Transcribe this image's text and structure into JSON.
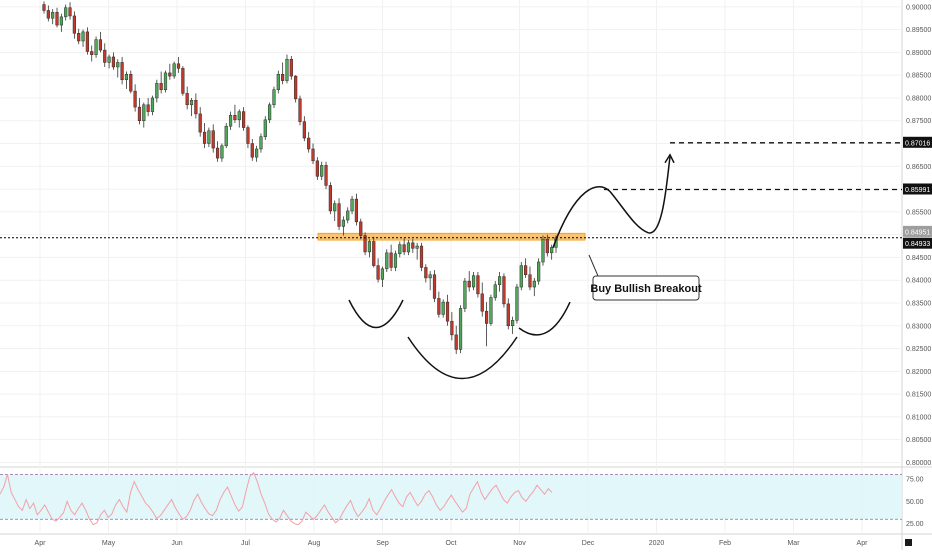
{
  "chart_data": {
    "type": "candlestick",
    "instrument_hint": "",
    "y_axis": {
      "ticks": [
        "0.90000",
        "0.89500",
        "0.89000",
        "0.88500",
        "0.88000",
        "0.87500",
        "0.87000",
        "0.86500",
        "0.86000",
        "0.85500",
        "0.85000",
        "0.84500",
        "0.84000",
        "0.83500",
        "0.83000",
        "0.82500",
        "0.82000",
        "0.81500",
        "0.81000",
        "0.80500",
        "0.80000"
      ],
      "ylim": [
        0.799,
        0.9015
      ]
    },
    "x_axis": {
      "ticks": [
        "Apr",
        "May",
        "Jun",
        "Jul",
        "Aug",
        "Sep",
        "Oct",
        "Nov",
        "Dec",
        "2020",
        "Feb",
        "Mar",
        "Apr"
      ]
    },
    "price_labels": [
      {
        "text": "0.87016",
        "value": 0.87016,
        "style": "dark"
      },
      {
        "text": "0.85991",
        "value": 0.85991,
        "style": "dark"
      },
      {
        "text": "0.84951",
        "value": 0.84951,
        "style": "gray"
      },
      {
        "text": "0.84933",
        "value": 0.84933,
        "style": "dark"
      }
    ],
    "levels": {
      "resistance_zone": [
        0.8488,
        0.8503
      ],
      "current_price_line": 0.84933,
      "target_1": 0.85991,
      "target_2": 0.87016
    },
    "annotation": "Buy Bullish Breakout",
    "candles": [
      [
        0.9005,
        0.9012,
        0.8985,
        0.8992
      ],
      [
        0.8992,
        0.9003,
        0.8968,
        0.8975
      ],
      [
        0.8975,
        0.8995,
        0.8962,
        0.8988
      ],
      [
        0.8988,
        0.8998,
        0.8955,
        0.896
      ],
      [
        0.896,
        0.8985,
        0.8945,
        0.8978
      ],
      [
        0.8978,
        0.9005,
        0.897,
        0.8998
      ],
      [
        0.8998,
        0.901,
        0.8972,
        0.898
      ],
      [
        0.898,
        0.899,
        0.893,
        0.8942
      ],
      [
        0.8942,
        0.8952,
        0.8918,
        0.8925
      ],
      [
        0.8925,
        0.895,
        0.8912,
        0.8945
      ],
      [
        0.8945,
        0.8955,
        0.8895,
        0.8902
      ],
      [
        0.8902,
        0.8915,
        0.888,
        0.8895
      ],
      [
        0.8895,
        0.8935,
        0.8888,
        0.8928
      ],
      [
        0.8928,
        0.8945,
        0.89,
        0.8905
      ],
      [
        0.8905,
        0.892,
        0.8868,
        0.8878
      ],
      [
        0.8878,
        0.8895,
        0.8865,
        0.889
      ],
      [
        0.889,
        0.89,
        0.8862,
        0.8868
      ],
      [
        0.8868,
        0.8885,
        0.8845,
        0.8878
      ],
      [
        0.8878,
        0.889,
        0.883,
        0.884
      ],
      [
        0.884,
        0.8858,
        0.882,
        0.8852
      ],
      [
        0.8852,
        0.886,
        0.881,
        0.8815
      ],
      [
        0.8815,
        0.883,
        0.877,
        0.878
      ],
      [
        0.878,
        0.88,
        0.8742,
        0.875
      ],
      [
        0.875,
        0.879,
        0.8735,
        0.8785
      ],
      [
        0.8785,
        0.88,
        0.876,
        0.877
      ],
      [
        0.877,
        0.8805,
        0.8762,
        0.88
      ],
      [
        0.88,
        0.884,
        0.879,
        0.8832
      ],
      [
        0.8832,
        0.8858,
        0.881,
        0.8818
      ],
      [
        0.8818,
        0.886,
        0.8812,
        0.8855
      ],
      [
        0.8855,
        0.8875,
        0.884,
        0.8848
      ],
      [
        0.8848,
        0.888,
        0.8842,
        0.8875
      ],
      [
        0.8875,
        0.889,
        0.8855,
        0.8865
      ],
      [
        0.8865,
        0.887,
        0.8805,
        0.881
      ],
      [
        0.881,
        0.8825,
        0.8775,
        0.8785
      ],
      [
        0.8785,
        0.88,
        0.876,
        0.8795
      ],
      [
        0.8795,
        0.881,
        0.8755,
        0.8765
      ],
      [
        0.8765,
        0.878,
        0.8715,
        0.8725
      ],
      [
        0.8725,
        0.8745,
        0.869,
        0.87
      ],
      [
        0.87,
        0.8735,
        0.8692,
        0.8728
      ],
      [
        0.8728,
        0.8742,
        0.868,
        0.869
      ],
      [
        0.869,
        0.8705,
        0.866,
        0.8668
      ],
      [
        0.8668,
        0.87,
        0.866,
        0.8695
      ],
      [
        0.8695,
        0.8745,
        0.869,
        0.8738
      ],
      [
        0.8738,
        0.877,
        0.873,
        0.8762
      ],
      [
        0.8762,
        0.8785,
        0.8745,
        0.8752
      ],
      [
        0.8752,
        0.8775,
        0.8735,
        0.877
      ],
      [
        0.877,
        0.878,
        0.8728,
        0.8735
      ],
      [
        0.8735,
        0.874,
        0.869,
        0.87
      ],
      [
        0.87,
        0.871,
        0.8662,
        0.867
      ],
      [
        0.867,
        0.8695,
        0.866,
        0.8688
      ],
      [
        0.8688,
        0.8722,
        0.868,
        0.8715
      ],
      [
        0.8715,
        0.876,
        0.8708,
        0.8752
      ],
      [
        0.8752,
        0.879,
        0.8745,
        0.8785
      ],
      [
        0.8785,
        0.8825,
        0.8778,
        0.8818
      ],
      [
        0.8818,
        0.886,
        0.881,
        0.8852
      ],
      [
        0.8852,
        0.8878,
        0.883,
        0.8838
      ],
      [
        0.8838,
        0.8895,
        0.8832,
        0.8885
      ],
      [
        0.8885,
        0.8892,
        0.884,
        0.8848
      ],
      [
        0.8848,
        0.885,
        0.879,
        0.8798
      ],
      [
        0.8798,
        0.8805,
        0.874,
        0.8748
      ],
      [
        0.8748,
        0.876,
        0.8705,
        0.8712
      ],
      [
        0.8712,
        0.8725,
        0.868,
        0.8688
      ],
      [
        0.8688,
        0.87,
        0.8655,
        0.8662
      ],
      [
        0.8662,
        0.867,
        0.862,
        0.8628
      ],
      [
        0.8628,
        0.866,
        0.862,
        0.8652
      ],
      [
        0.8652,
        0.866,
        0.86,
        0.8608
      ],
      [
        0.8608,
        0.8615,
        0.8545,
        0.8552
      ],
      [
        0.8552,
        0.8575,
        0.853,
        0.8568
      ],
      [
        0.8568,
        0.858,
        0.851,
        0.8518
      ],
      [
        0.8518,
        0.854,
        0.8498,
        0.8532
      ],
      [
        0.8532,
        0.856,
        0.8525,
        0.8552
      ],
      [
        0.8552,
        0.8585,
        0.8545,
        0.8578
      ],
      [
        0.8578,
        0.859,
        0.852,
        0.8528
      ],
      [
        0.8528,
        0.8535,
        0.849,
        0.8498
      ],
      [
        0.8498,
        0.8505,
        0.8455,
        0.8462
      ],
      [
        0.8462,
        0.849,
        0.845,
        0.8485
      ],
      [
        0.8485,
        0.8495,
        0.8428,
        0.8432
      ],
      [
        0.8432,
        0.8448,
        0.8395,
        0.8402
      ],
      [
        0.8402,
        0.843,
        0.8385,
        0.8425
      ],
      [
        0.8425,
        0.8468,
        0.8418,
        0.846
      ],
      [
        0.846,
        0.8478,
        0.842,
        0.8428
      ],
      [
        0.8428,
        0.8465,
        0.842,
        0.8458
      ],
      [
        0.8458,
        0.8485,
        0.845,
        0.8478
      ],
      [
        0.8478,
        0.8492,
        0.8455,
        0.8462
      ],
      [
        0.8462,
        0.8488,
        0.8455,
        0.8482
      ],
      [
        0.8482,
        0.849,
        0.846,
        0.847
      ],
      [
        0.847,
        0.8482,
        0.8445,
        0.8475
      ],
      [
        0.8475,
        0.8482,
        0.842,
        0.8428
      ],
      [
        0.8428,
        0.8435,
        0.8395,
        0.8405
      ],
      [
        0.8405,
        0.842,
        0.8378,
        0.8412
      ],
      [
        0.8412,
        0.8422,
        0.8352,
        0.836
      ],
      [
        0.836,
        0.8375,
        0.8318,
        0.8325
      ],
      [
        0.8325,
        0.8358,
        0.8318,
        0.8352
      ],
      [
        0.8352,
        0.8368,
        0.83,
        0.831
      ],
      [
        0.831,
        0.833,
        0.8268,
        0.828
      ],
      [
        0.828,
        0.83,
        0.8238,
        0.8248
      ],
      [
        0.8248,
        0.8345,
        0.824,
        0.8338
      ],
      [
        0.8338,
        0.8405,
        0.833,
        0.8398
      ],
      [
        0.8398,
        0.842,
        0.8375,
        0.8385
      ],
      [
        0.8385,
        0.8418,
        0.8378,
        0.841
      ],
      [
        0.841,
        0.8418,
        0.8362,
        0.837
      ],
      [
        0.837,
        0.8395,
        0.832,
        0.8332
      ],
      [
        0.8332,
        0.8352,
        0.8255,
        0.8305
      ],
      [
        0.8305,
        0.8368,
        0.83,
        0.8362
      ],
      [
        0.8362,
        0.8398,
        0.8355,
        0.839
      ],
      [
        0.839,
        0.8418,
        0.8375,
        0.8408
      ],
      [
        0.8408,
        0.8415,
        0.834,
        0.8348
      ],
      [
        0.8348,
        0.836,
        0.8292,
        0.83
      ],
      [
        0.83,
        0.832,
        0.8282,
        0.8312
      ],
      [
        0.8312,
        0.8392,
        0.8305,
        0.8385
      ],
      [
        0.8385,
        0.844,
        0.8378,
        0.8432
      ],
      [
        0.8432,
        0.8448,
        0.8405,
        0.8412
      ],
      [
        0.8412,
        0.843,
        0.8378,
        0.8385
      ],
      [
        0.8385,
        0.8405,
        0.8365,
        0.8398
      ],
      [
        0.8398,
        0.8448,
        0.839,
        0.844
      ],
      [
        0.844,
        0.8498,
        0.8432,
        0.849
      ],
      [
        0.849,
        0.85,
        0.8452,
        0.846
      ],
      [
        0.846,
        0.8478,
        0.8445,
        0.8472
      ],
      [
        0.8472,
        0.8498,
        0.846,
        0.8493
      ]
    ],
    "rsi": {
      "ticks": [
        "75.00",
        "50.00",
        "25.00"
      ],
      "ylim": [
        18,
        85
      ],
      "band": [
        30,
        80
      ],
      "values": [
        58,
        66,
        80,
        60,
        52,
        44,
        40,
        52,
        42,
        48,
        35,
        40,
        46,
        38,
        30,
        28,
        32,
        37,
        50,
        40,
        35,
        42,
        48,
        40,
        30,
        24,
        26,
        35,
        40,
        32,
        36,
        46,
        52,
        44,
        38,
        60,
        72,
        63,
        56,
        48,
        44,
        38,
        31,
        34,
        40,
        46,
        52,
        43,
        36,
        30,
        33,
        40,
        51,
        58,
        49,
        42,
        36,
        34,
        40,
        52,
        60,
        66,
        56,
        46,
        39,
        44,
        62,
        78,
        82,
        72,
        58,
        48,
        36,
        30,
        27,
        31,
        40,
        34,
        28,
        25,
        24,
        28,
        38,
        34,
        30,
        34,
        40,
        46,
        38,
        32,
        26,
        30,
        38,
        45,
        51,
        40,
        33,
        38,
        44,
        53,
        40,
        35,
        42,
        50,
        57,
        63,
        55,
        48,
        44,
        55,
        60,
        52,
        45,
        50,
        58,
        62,
        55,
        46,
        40,
        44,
        51,
        57,
        50,
        44,
        38,
        42,
        58,
        65,
        72,
        60,
        52,
        58,
        64,
        68,
        60,
        52,
        48,
        55,
        60,
        62,
        54,
        50,
        56,
        61,
        68,
        63,
        58,
        64,
        60
      ]
    }
  }
}
